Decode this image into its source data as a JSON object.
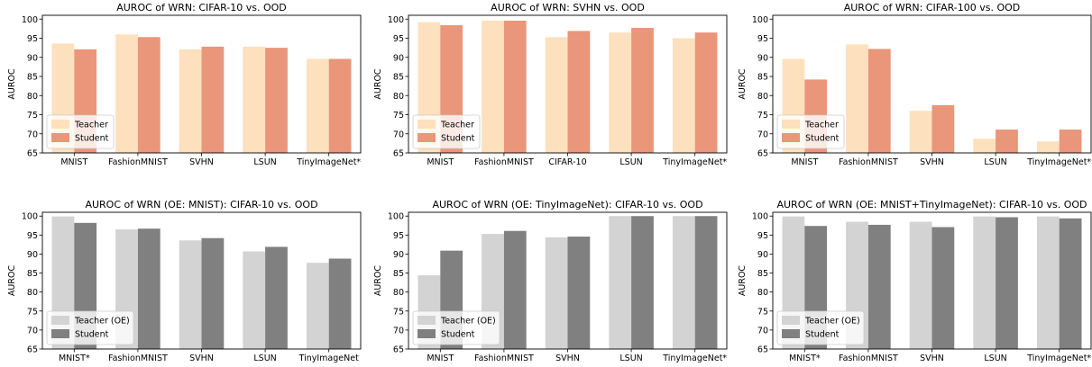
{
  "chart_data": [
    {
      "type": "bar",
      "title": "AUROC of WRN: CIFAR-10 vs. OOD",
      "ylabel": "AUROC",
      "ylim": [
        65,
        101
      ],
      "yticks": [
        65,
        70,
        75,
        80,
        85,
        90,
        95,
        100
      ],
      "categories": [
        "MNIST",
        "FashionMNIST",
        "SVHN",
        "LSUN",
        "TinyImageNet*"
      ],
      "series": [
        {
          "name": "Teacher",
          "color": "#fde0bd",
          "values": [
            93.6,
            96.0,
            92.1,
            92.8,
            89.6
          ]
        },
        {
          "name": "Student",
          "color": "#e9967a",
          "values": [
            92.1,
            95.3,
            92.8,
            92.5,
            89.6
          ]
        }
      ],
      "legend": "lower-left"
    },
    {
      "type": "bar",
      "title": "AUROC of WRN: SVHN vs. OOD",
      "ylabel": "AUROC",
      "ylim": [
        65,
        101
      ],
      "yticks": [
        65,
        70,
        75,
        80,
        85,
        90,
        95,
        100
      ],
      "categories": [
        "MNIST",
        "FashionMNIST",
        "CIFAR-10",
        "LSUN",
        "TinyImageNet*"
      ],
      "series": [
        {
          "name": "Teacher",
          "color": "#fde0bd",
          "values": [
            99.2,
            99.6,
            95.3,
            96.5,
            95.0
          ]
        },
        {
          "name": "Student",
          "color": "#e9967a",
          "values": [
            98.4,
            99.6,
            96.9,
            97.7,
            96.5
          ]
        }
      ],
      "legend": "lower-left"
    },
    {
      "type": "bar",
      "title": "AUROC of WRN: CIFAR-100 vs. OOD",
      "ylabel": "AUROC",
      "ylim": [
        65,
        101
      ],
      "yticks": [
        65,
        70,
        75,
        80,
        85,
        90,
        95,
        100
      ],
      "categories": [
        "MNIST",
        "FashionMNIST",
        "SVHN",
        "LSUN",
        "TinyImageNet*"
      ],
      "series": [
        {
          "name": "Teacher",
          "color": "#fde0bd",
          "values": [
            89.6,
            93.4,
            76.0,
            68.7,
            68.0
          ]
        },
        {
          "name": "Student",
          "color": "#e9967a",
          "values": [
            84.2,
            92.2,
            77.5,
            71.1,
            71.1
          ]
        }
      ],
      "legend": "lower-left"
    },
    {
      "type": "bar",
      "title": "AUROC of WRN (OE: MNIST): CIFAR-10 vs. OOD",
      "ylabel": "AUROC",
      "ylim": [
        65,
        101
      ],
      "yticks": [
        65,
        70,
        75,
        80,
        85,
        90,
        95,
        100
      ],
      "categories": [
        "MNIST*",
        "FashionMNIST",
        "SVHN",
        "LSUN",
        "TinyImageNet"
      ],
      "series": [
        {
          "name": "Teacher (OE)",
          "color": "#d3d3d3",
          "values": [
            99.9,
            96.5,
            93.6,
            90.7,
            87.7
          ]
        },
        {
          "name": "Student",
          "color": "#808080",
          "values": [
            98.2,
            96.7,
            94.2,
            91.9,
            88.8
          ]
        }
      ],
      "legend": "lower-left"
    },
    {
      "type": "bar",
      "title": "AUROC of WRN (OE: TinyImageNet): CIFAR-10 vs. OOD",
      "ylabel": "AUROC",
      "ylim": [
        65,
        101
      ],
      "yticks": [
        65,
        70,
        75,
        80,
        85,
        90,
        95,
        100
      ],
      "categories": [
        "MNIST",
        "FashionMNIST",
        "SVHN",
        "LSUN",
        "TinyImageNet*"
      ],
      "series": [
        {
          "name": "Teacher (OE)",
          "color": "#d3d3d3",
          "values": [
            84.4,
            95.3,
            94.4,
            100.0,
            100.0
          ]
        },
        {
          "name": "Student",
          "color": "#808080",
          "values": [
            90.9,
            96.1,
            94.6,
            100.0,
            100.0
          ]
        }
      ],
      "legend": "lower-left"
    },
    {
      "type": "bar",
      "title": "AUROC of WRN (OE: MNIST+TinyImageNet): CIFAR-10 vs. OOD",
      "ylabel": "AUROC",
      "ylim": [
        65,
        101
      ],
      "yticks": [
        65,
        70,
        75,
        80,
        85,
        90,
        95,
        100
      ],
      "categories": [
        "MNIST*",
        "FashionMNIST",
        "SVHN",
        "LSUN",
        "TinyImageNet*"
      ],
      "series": [
        {
          "name": "Teacher (OE)",
          "color": "#d3d3d3",
          "values": [
            99.9,
            98.5,
            98.5,
            99.9,
            99.9
          ]
        },
        {
          "name": "Student",
          "color": "#808080",
          "values": [
            97.4,
            97.7,
            97.1,
            99.7,
            99.4
          ]
        }
      ],
      "legend": "lower-left"
    }
  ]
}
